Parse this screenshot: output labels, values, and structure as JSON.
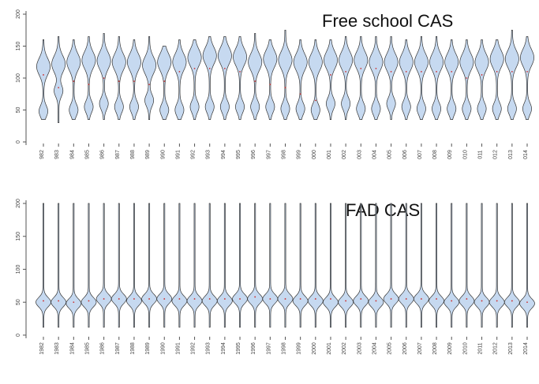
{
  "chart_data": [
    {
      "type": "violin",
      "annotation": "Free school CAS",
      "color": "#c6d9f0",
      "categories": [
        "982",
        "983",
        "984",
        "985",
        "986",
        "987",
        "988",
        "989",
        "990",
        "991",
        "992",
        "993",
        "994",
        "995",
        "996",
        "997",
        "998",
        "999",
        "000",
        "001",
        "002",
        "003",
        "004",
        "005",
        "006",
        "007",
        "008",
        "009",
        "010",
        "011",
        "012",
        "013",
        "014"
      ],
      "min": [
        35,
        30,
        35,
        35,
        35,
        35,
        35,
        35,
        35,
        35,
        35,
        35,
        35,
        35,
        35,
        35,
        35,
        35,
        35,
        35,
        35,
        35,
        35,
        35,
        35,
        35,
        35,
        35,
        35,
        35,
        35,
        35,
        35
      ],
      "max": [
        160,
        165,
        160,
        165,
        170,
        165,
        160,
        165,
        150,
        160,
        160,
        165,
        165,
        165,
        170,
        160,
        175,
        160,
        160,
        160,
        165,
        165,
        165,
        165,
        160,
        165,
        165,
        160,
        160,
        160,
        160,
        175,
        165
      ],
      "median": [
        105,
        85,
        95,
        90,
        100,
        95,
        95,
        90,
        95,
        110,
        115,
        115,
        115,
        110,
        95,
        90,
        85,
        75,
        65,
        105,
        110,
        115,
        115,
        110,
        110,
        110,
        110,
        110,
        100,
        105,
        110,
        110,
        110
      ],
      "lower_mode": [
        48,
        80,
        50,
        55,
        60,
        55,
        55,
        65,
        50,
        50,
        55,
        55,
        55,
        55,
        55,
        55,
        52,
        52,
        50,
        60,
        60,
        52,
        52,
        60,
        55,
        52,
        52,
        52,
        52,
        52,
        52,
        52,
        52
      ],
      "upper_mode": [
        118,
        122,
        125,
        128,
        127,
        125,
        125,
        120,
        125,
        125,
        132,
        135,
        135,
        133,
        125,
        130,
        128,
        125,
        125,
        128,
        128,
        128,
        125,
        125,
        125,
        125,
        125,
        125,
        125,
        125,
        130,
        130,
        132
      ],
      "ylim": [
        0,
        200
      ],
      "yticks": [
        0,
        50,
        100,
        150,
        200
      ]
    },
    {
      "type": "violin",
      "annotation": "FAD CAS",
      "color": "#c6d9f0",
      "categories": [
        "1982",
        "1983",
        "1984",
        "1985",
        "1986",
        "1987",
        "1988",
        "1989",
        "1990",
        "1991",
        "1992",
        "1993",
        "1994",
        "1995",
        "1996",
        "1997",
        "1998",
        "1999",
        "2000",
        "2001",
        "2002",
        "2003",
        "2004",
        "2005",
        "2006",
        "2007",
        "2008",
        "2009",
        "2010",
        "2011",
        "2012",
        "2013",
        "2014"
      ],
      "min": [
        12,
        12,
        12,
        12,
        12,
        12,
        12,
        12,
        12,
        12,
        12,
        12,
        12,
        12,
        12,
        12,
        12,
        12,
        12,
        12,
        12,
        12,
        12,
        12,
        12,
        12,
        12,
        12,
        12,
        12,
        12,
        12,
        12
      ],
      "max": [
        200,
        200,
        200,
        200,
        200,
        200,
        200,
        200,
        200,
        200,
        200,
        200,
        200,
        200,
        200,
        200,
        200,
        200,
        200,
        200,
        200,
        200,
        200,
        200,
        200,
        200,
        200,
        200,
        200,
        200,
        200,
        200,
        200
      ],
      "median": [
        52,
        52,
        50,
        52,
        55,
        55,
        55,
        55,
        55,
        55,
        55,
        55,
        55,
        55,
        58,
        55,
        55,
        55,
        55,
        55,
        52,
        55,
        52,
        55,
        55,
        55,
        55,
        52,
        55,
        52,
        52,
        52,
        50
      ],
      "lower_mode": [
        50,
        50,
        48,
        50,
        55,
        55,
        52,
        55,
        55,
        52,
        52,
        52,
        52,
        55,
        55,
        55,
        55,
        52,
        52,
        50,
        50,
        52,
        50,
        55,
        55,
        55,
        52,
        50,
        52,
        50,
        50,
        50,
        48
      ],
      "ylim": [
        0,
        200
      ],
      "yticks": [
        0,
        50,
        100,
        150,
        200
      ]
    }
  ]
}
